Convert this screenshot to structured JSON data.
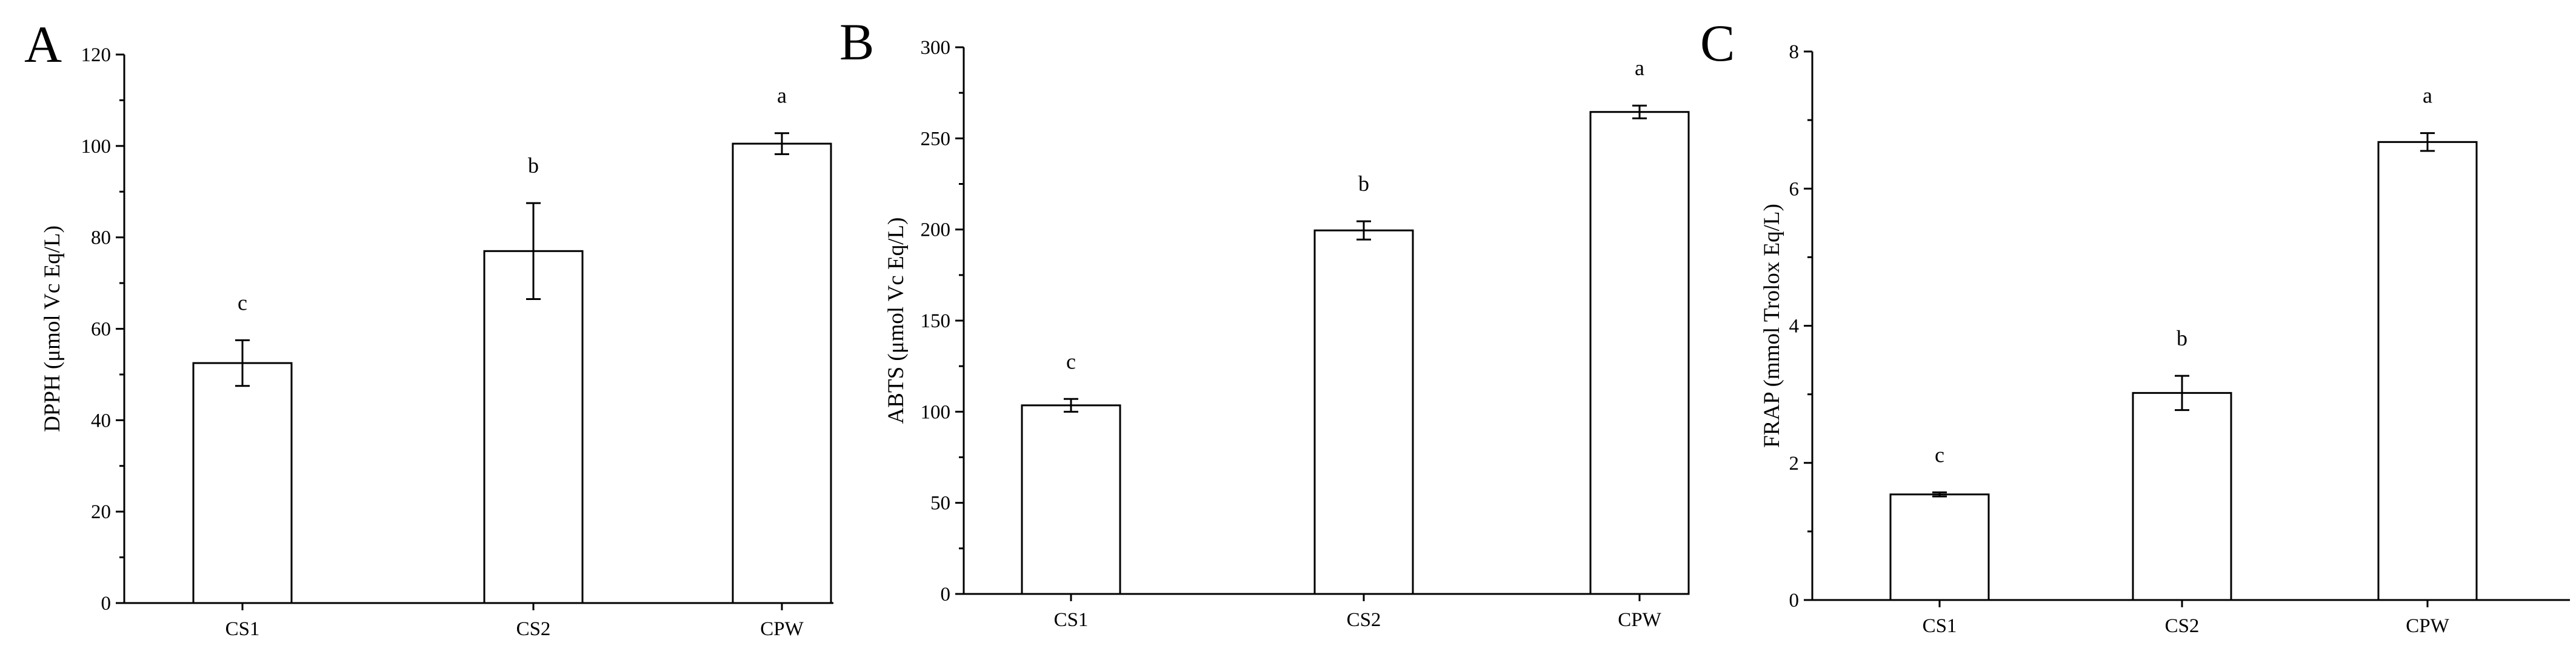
{
  "chart_data": [
    {
      "panel": "A",
      "type": "bar",
      "categories": [
        "CS1",
        "CS2",
        "CPW"
      ],
      "values": [
        52.5,
        77,
        100.5
      ],
      "errors": [
        5,
        10.5,
        2.3
      ],
      "significance": [
        "c",
        "b",
        "a"
      ],
      "ylabel": "DPPH (μmol Vc Eq/L)",
      "ylim": [
        0,
        120
      ],
      "yticks": [
        0,
        20,
        40,
        60,
        80,
        100,
        120
      ],
      "grid": false
    },
    {
      "panel": "B",
      "type": "bar",
      "categories": [
        "CS1",
        "CS2",
        "CPW"
      ],
      "values": [
        103.5,
        199.5,
        264.5
      ],
      "errors": [
        3.5,
        5,
        3.5
      ],
      "significance": [
        "c",
        "b",
        "a"
      ],
      "ylabel": "ABTS (μmol Vc Eq/L)",
      "ylim": [
        0,
        300
      ],
      "yticks": [
        0,
        50,
        100,
        150,
        200,
        250,
        300
      ],
      "grid": false
    },
    {
      "panel": "C",
      "type": "bar",
      "categories": [
        "CS1",
        "CS2",
        "CPW"
      ],
      "values": [
        1.54,
        3.02,
        6.68
      ],
      "errors": [
        0.03,
        0.25,
        0.13
      ],
      "significance": [
        "c",
        "b",
        "a"
      ],
      "ylabel": "FRAP (mmol Trolox Eq/L)",
      "ylim": [
        0,
        8
      ],
      "yticks": [
        0,
        2,
        4,
        6,
        8
      ],
      "grid": false
    }
  ]
}
